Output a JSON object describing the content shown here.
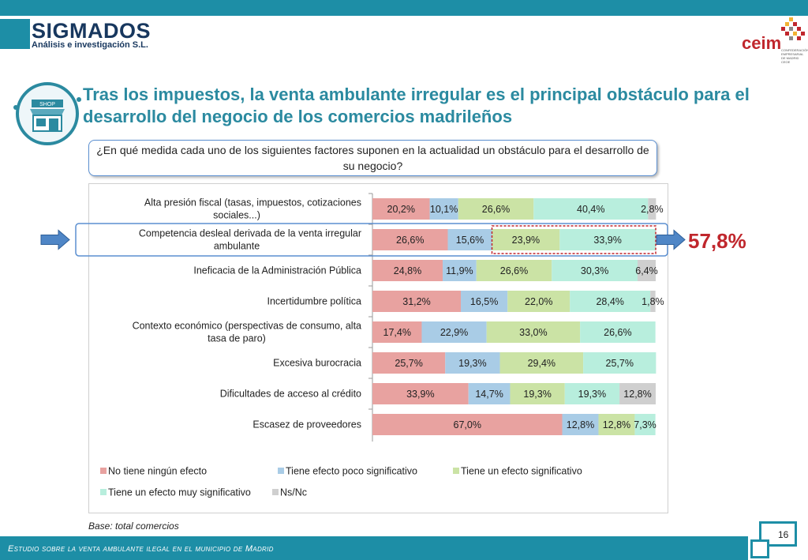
{
  "header": {
    "logo_name": "SIGMADOS",
    "logo_subtitle": "Análisis e investigación S.L.",
    "partner_logo": "ceim",
    "partner_lines": "CONFEDERACIÓN EMPRESARIAL DE MADRID CEOE",
    "shop_sign": "SHOP"
  },
  "title": "Tras los impuestos, la venta ambulante irregular es el principal obstáculo para el desarrollo del negocio de los comercios madrileños",
  "question": "¿En qué medida cada uno de los siguientes factores suponen en la actualidad un obstáculo para el desarrollo de su negocio?",
  "highlight": {
    "value_label": "57,8%"
  },
  "base_note": "Base: total comercios",
  "footer": {
    "text": "Estudio sobre la venta ambulante ilegal en el municipio de Madrid",
    "page": "16"
  },
  "colors": {
    "accent": "#1d8ea6",
    "title": "#2b8aa0",
    "highlight": "#c0272d",
    "series": [
      "#e8a2a0",
      "#a9cce6",
      "#cbe3a5",
      "#b8eedd",
      "#cfcfcf"
    ]
  },
  "chart_data": {
    "type": "bar",
    "orientation": "horizontal",
    "stacked": true,
    "categories": [
      "Alta presión fiscal (tasas, impuestos, cotizaciones sociales...)",
      "Competencia desleal derivada de la venta irregular ambulante",
      "Ineficacia de la Administración Pública",
      "Incertidumbre política",
      "Contexto económico (perspectivas de consumo, alta tasa de paro)",
      "Excesiva burocracia",
      "Dificultades de acceso al crédito",
      "Escasez de proveedores"
    ],
    "category_lines": [
      [
        "Alta presión fiscal (tasas, impuestos, cotizaciones",
        "sociales...)"
      ],
      [
        "Competencia desleal derivada de la venta irregular",
        "ambulante"
      ],
      [
        "Ineficacia de la Administración Pública"
      ],
      [
        "Incertidumbre política"
      ],
      [
        "Contexto económico (perspectivas de consumo, alta",
        "tasa de paro)"
      ],
      [
        "Excesiva burocracia"
      ],
      [
        "Dificultades de acceso al crédito"
      ],
      [
        "Escasez de proveedores"
      ]
    ],
    "series": [
      {
        "name": "No tiene ningún efecto",
        "values": [
          20.2,
          26.6,
          24.8,
          31.2,
          17.4,
          25.7,
          33.9,
          67.0
        ],
        "labels": [
          "20,2%",
          "26,6%",
          "24,8%",
          "31,2%",
          "17,4%",
          "25,7%",
          "33,9%",
          "67,0%"
        ]
      },
      {
        "name": "Tiene efecto poco significativo",
        "values": [
          10.1,
          15.6,
          11.9,
          16.5,
          22.9,
          19.3,
          14.7,
          12.8
        ],
        "labels": [
          "10,1%",
          "15,6%",
          "11,9%",
          "16,5%",
          "22,9%",
          "19,3%",
          "14,7%",
          "12,8%"
        ]
      },
      {
        "name": "Tiene un efecto significativo",
        "values": [
          26.6,
          23.9,
          26.6,
          22.0,
          33.0,
          29.4,
          19.3,
          12.8
        ],
        "labels": [
          "26,6%",
          "23,9%",
          "26,6%",
          "22,0%",
          "33,0%",
          "29,4%",
          "19,3%",
          "12,8%"
        ]
      },
      {
        "name": "Tiene un efecto muy significativo",
        "values": [
          40.4,
          33.9,
          30.3,
          28.4,
          26.6,
          25.7,
          19.3,
          7.3
        ],
        "labels": [
          "40,4%",
          "33,9%",
          "30,3%",
          "28,4%",
          "26,6%",
          "25,7%",
          "19,3%",
          "7,3%"
        ]
      },
      {
        "name": "Ns/Nc",
        "values": [
          2.8,
          0,
          6.4,
          1.8,
          0,
          0,
          12.8,
          0
        ],
        "labels": [
          "2,8%",
          "",
          "6,4%",
          "1,8%",
          "",
          "",
          "12,8%",
          ""
        ]
      }
    ],
    "xlim": [
      0,
      100
    ],
    "legend_position": "bottom",
    "grid": false,
    "highlighted_category": "Competencia desleal derivada de la venta irregular ambulante",
    "highlighted_series": [
      "Tiene un efecto significativo",
      "Tiene un efecto muy significativo"
    ]
  }
}
